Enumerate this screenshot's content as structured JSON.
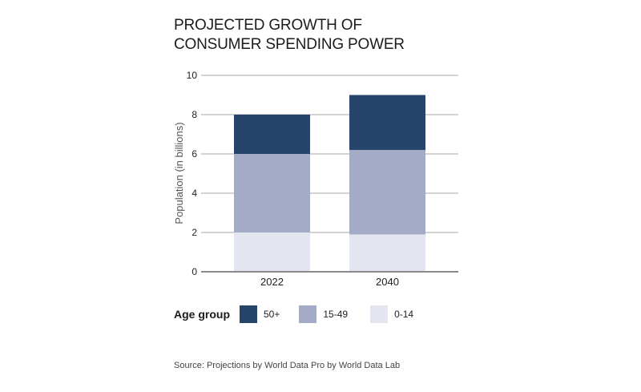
{
  "chart_data": {
    "type": "bar",
    "stacked": true,
    "title": "PROJECTED GROWTH OF CONSUMER SPENDING POWER",
    "title_lines": [
      "PROJECTED GROWTH OF",
      "CONSUMER SPENDING POWER"
    ],
    "xlabel": "",
    "ylabel": "Population (in billions)",
    "ylim": [
      0,
      10
    ],
    "yticks": [
      0,
      2,
      4,
      6,
      8,
      10
    ],
    "grid": true,
    "categories": [
      "2022",
      "2040"
    ],
    "series": [
      {
        "name": "0-14",
        "values": [
          2.0,
          1.9
        ],
        "color": "#e3e6f0"
      },
      {
        "name": "15-49",
        "values": [
          4.0,
          4.3
        ],
        "color": "#a3abc7"
      },
      {
        "name": "50+",
        "values": [
          2.0,
          2.8
        ],
        "color": "#27446b"
      }
    ],
    "legend": {
      "title": "Age group",
      "placement": "bottom-left",
      "order": [
        "50+",
        "15-49",
        "0-14"
      ]
    },
    "source": "Source: Projections by World Data Pro by World Data Lab"
  }
}
